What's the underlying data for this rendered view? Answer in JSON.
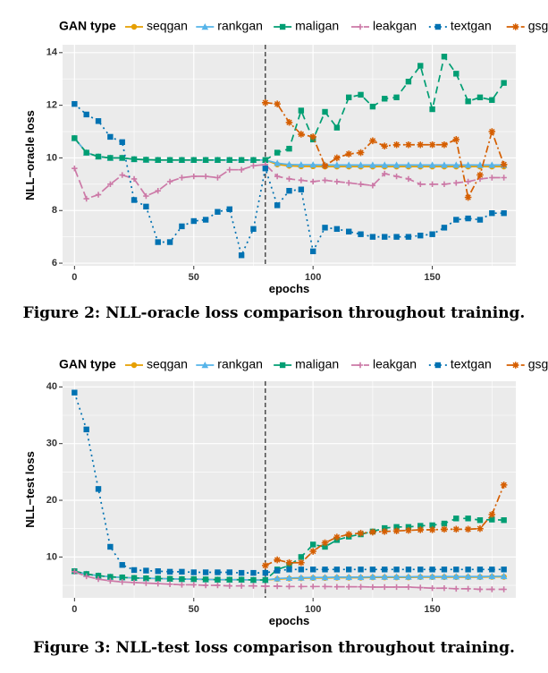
{
  "chart_data": [
    {
      "type": "line",
      "legend_title": "GAN type",
      "legend_position": "top",
      "xlabel": "epochs",
      "ylabel": "NLL−oracle loss",
      "xlim": [
        -5,
        185
      ],
      "ylim": [
        5.9,
        14.3
      ],
      "x_ticks": [
        "0",
        "50",
        "100",
        "150"
      ],
      "y_ticks": [
        "6",
        "8",
        "10",
        "12",
        "14"
      ],
      "grid": true,
      "vline_x": 80,
      "caption": "Figure 2: NLL-oracle loss comparison throughout training.",
      "series": [
        {
          "name": "seqgan",
          "color": "#e69f00",
          "dash": "",
          "marker": "circle",
          "x": [
            0,
            5,
            10,
            15,
            20,
            25,
            30,
            35,
            40,
            45,
            50,
            55,
            60,
            65,
            70,
            75,
            80,
            85,
            90,
            95,
            100,
            105,
            110,
            115,
            120,
            125,
            130,
            135,
            140,
            145,
            150,
            155,
            160,
            165,
            170,
            175,
            180
          ],
          "y": [
            10.75,
            10.2,
            10.05,
            10.0,
            10.0,
            9.95,
            9.93,
            9.92,
            9.92,
            9.92,
            9.92,
            9.92,
            9.92,
            9.92,
            9.92,
            9.92,
            9.92,
            9.75,
            9.7,
            9.68,
            9.68,
            9.67,
            9.67,
            9.67,
            9.67,
            9.67,
            9.67,
            9.67,
            9.67,
            9.67,
            9.67,
            9.67,
            9.67,
            9.67,
            9.67,
            9.67,
            9.67
          ]
        },
        {
          "name": "rankgan",
          "color": "#56b4e9",
          "dash": "",
          "marker": "triangle",
          "x": [
            0,
            5,
            10,
            15,
            20,
            25,
            30,
            35,
            40,
            45,
            50,
            55,
            60,
            65,
            70,
            75,
            80,
            85,
            90,
            95,
            100,
            105,
            110,
            115,
            120,
            125,
            130,
            135,
            140,
            145,
            150,
            155,
            160,
            165,
            170,
            175,
            180
          ],
          "y": [
            10.75,
            10.2,
            10.05,
            10.0,
            10.0,
            9.95,
            9.93,
            9.92,
            9.92,
            9.92,
            9.92,
            9.92,
            9.92,
            9.92,
            9.92,
            9.92,
            9.92,
            9.8,
            9.75,
            9.74,
            9.74,
            9.73,
            9.73,
            9.73,
            9.73,
            9.73,
            9.73,
            9.73,
            9.73,
            9.73,
            9.73,
            9.73,
            9.73,
            9.73,
            9.73,
            9.73,
            9.73
          ]
        },
        {
          "name": "maligan",
          "color": "#009e73",
          "dash": "8,5",
          "marker": "square",
          "x": [
            0,
            5,
            10,
            15,
            20,
            25,
            30,
            35,
            40,
            45,
            50,
            55,
            60,
            65,
            70,
            75,
            80,
            85,
            90,
            95,
            100,
            105,
            110,
            115,
            120,
            125,
            130,
            135,
            140,
            145,
            150,
            155,
            160,
            165,
            170,
            175,
            180
          ],
          "y": [
            10.75,
            10.2,
            10.05,
            10.0,
            10.0,
            9.95,
            9.93,
            9.92,
            9.92,
            9.92,
            9.92,
            9.92,
            9.92,
            9.92,
            9.92,
            9.92,
            9.92,
            10.2,
            10.35,
            11.8,
            10.7,
            11.75,
            11.15,
            12.3,
            12.4,
            11.95,
            12.25,
            12.3,
            12.9,
            13.5,
            11.85,
            13.85,
            13.2,
            12.15,
            12.3,
            12.2,
            12.85
          ]
        },
        {
          "name": "leakgan",
          "color": "#cc79a7",
          "dash": "10,4",
          "marker": "cross",
          "x": [
            0,
            5,
            10,
            15,
            20,
            25,
            30,
            35,
            40,
            45,
            50,
            55,
            60,
            65,
            70,
            75,
            80,
            85,
            90,
            95,
            100,
            105,
            110,
            115,
            120,
            125,
            130,
            135,
            140,
            145,
            150,
            155,
            160,
            165,
            170,
            175,
            180
          ],
          "y": [
            9.6,
            8.45,
            8.6,
            9.0,
            9.35,
            9.2,
            8.55,
            8.75,
            9.1,
            9.25,
            9.3,
            9.3,
            9.25,
            9.55,
            9.55,
            9.7,
            9.75,
            9.3,
            9.2,
            9.15,
            9.1,
            9.15,
            9.1,
            9.05,
            9.0,
            8.95,
            9.4,
            9.3,
            9.2,
            9.0,
            9.0,
            9.0,
            9.05,
            9.1,
            9.2,
            9.25,
            9.25
          ]
        },
        {
          "name": "textgan",
          "color": "#0072b2",
          "dash": "2,4",
          "marker": "square",
          "x": [
            0,
            5,
            10,
            15,
            20,
            25,
            30,
            35,
            40,
            45,
            50,
            55,
            60,
            65,
            70,
            75,
            80,
            85,
            90,
            95,
            100,
            105,
            110,
            115,
            120,
            125,
            130,
            135,
            140,
            145,
            150,
            155,
            160,
            165,
            170,
            175,
            180
          ],
          "y": [
            12.05,
            11.65,
            11.4,
            10.8,
            10.6,
            8.4,
            8.15,
            6.8,
            6.8,
            7.4,
            7.6,
            7.65,
            7.95,
            8.05,
            6.3,
            7.3,
            9.6,
            8.2,
            8.75,
            8.8,
            6.45,
            7.35,
            7.3,
            7.2,
            7.1,
            7.0,
            7.0,
            7.0,
            7.0,
            7.05,
            7.1,
            7.35,
            7.65,
            7.7,
            7.65,
            7.9,
            7.9
          ]
        },
        {
          "name": "gsgan",
          "color": "#d55e00",
          "dash": "8,3,2,3",
          "marker": "star",
          "x": [
            80,
            85,
            90,
            95,
            100,
            105,
            110,
            115,
            120,
            125,
            130,
            135,
            140,
            145,
            150,
            155,
            160,
            165,
            170,
            175,
            180
          ],
          "y": [
            12.1,
            12.05,
            11.35,
            10.9,
            10.8,
            9.7,
            10.0,
            10.15,
            10.2,
            10.65,
            10.45,
            10.5,
            10.5,
            10.5,
            10.5,
            10.5,
            10.7,
            8.5,
            9.35,
            11.0,
            9.75
          ]
        }
      ]
    },
    {
      "type": "line",
      "legend_title": "GAN type",
      "legend_position": "top",
      "xlabel": "epochs",
      "ylabel": "NLL−test loss",
      "xlim": [
        -5,
        185
      ],
      "ylim": [
        2.8,
        41
      ],
      "x_ticks": [
        "0",
        "50",
        "100",
        "150"
      ],
      "y_ticks": [
        "10",
        "20",
        "30",
        "40"
      ],
      "grid": true,
      "vline_x": 80,
      "caption": "Figure 3: NLL-test loss comparison throughout training.",
      "series": [
        {
          "name": "seqgan",
          "color": "#e69f00",
          "dash": "",
          "marker": "circle",
          "x": [
            0,
            5,
            10,
            15,
            20,
            25,
            30,
            35,
            40,
            45,
            50,
            55,
            60,
            65,
            70,
            75,
            80,
            85,
            90,
            95,
            100,
            105,
            110,
            115,
            120,
            125,
            130,
            135,
            140,
            145,
            150,
            155,
            160,
            165,
            170,
            175,
            180
          ],
          "y": [
            7.5,
            7.0,
            6.7,
            6.5,
            6.4,
            6.3,
            6.25,
            6.2,
            6.15,
            6.1,
            6.1,
            6.05,
            6.0,
            6.0,
            6.0,
            5.95,
            5.95,
            6.1,
            6.2,
            6.25,
            6.3,
            6.3,
            6.35,
            6.35,
            6.35,
            6.4,
            6.4,
            6.4,
            6.4,
            6.45,
            6.45,
            6.45,
            6.45,
            6.45,
            6.45,
            6.5,
            6.5
          ]
        },
        {
          "name": "rankgan",
          "color": "#56b4e9",
          "dash": "",
          "marker": "triangle",
          "x": [
            0,
            5,
            10,
            15,
            20,
            25,
            30,
            35,
            40,
            45,
            50,
            55,
            60,
            65,
            70,
            75,
            80,
            85,
            90,
            95,
            100,
            105,
            110,
            115,
            120,
            125,
            130,
            135,
            140,
            145,
            150,
            155,
            160,
            165,
            170,
            175,
            180
          ],
          "y": [
            7.5,
            7.0,
            6.7,
            6.5,
            6.4,
            6.3,
            6.25,
            6.2,
            6.15,
            6.1,
            6.1,
            6.05,
            6.0,
            6.0,
            6.0,
            5.95,
            5.95,
            6.2,
            6.3,
            6.35,
            6.4,
            6.4,
            6.45,
            6.45,
            6.45,
            6.5,
            6.5,
            6.5,
            6.5,
            6.55,
            6.55,
            6.55,
            6.55,
            6.55,
            6.55,
            6.6,
            6.6
          ]
        },
        {
          "name": "maligan",
          "color": "#009e73",
          "dash": "8,5",
          "marker": "square",
          "x": [
            0,
            5,
            10,
            15,
            20,
            25,
            30,
            35,
            40,
            45,
            50,
            55,
            60,
            65,
            70,
            75,
            80,
            85,
            90,
            95,
            100,
            105,
            110,
            115,
            120,
            125,
            130,
            135,
            140,
            145,
            150,
            155,
            160,
            165,
            170,
            175,
            180
          ],
          "y": [
            7.5,
            7.0,
            6.7,
            6.5,
            6.4,
            6.3,
            6.25,
            6.2,
            6.15,
            6.1,
            6.1,
            6.05,
            6.0,
            6.0,
            6.0,
            5.95,
            5.95,
            7.8,
            8.5,
            10.0,
            12.2,
            11.8,
            13.0,
            13.6,
            14.0,
            14.5,
            15.1,
            15.3,
            15.3,
            15.5,
            15.6,
            15.9,
            16.8,
            16.8,
            16.5,
            16.6,
            16.5
          ]
        },
        {
          "name": "leakgan",
          "color": "#cc79a7",
          "dash": "10,4",
          "marker": "cross",
          "x": [
            0,
            5,
            10,
            15,
            20,
            25,
            30,
            35,
            40,
            45,
            50,
            55,
            60,
            65,
            70,
            75,
            80,
            85,
            90,
            95,
            100,
            105,
            110,
            115,
            120,
            125,
            130,
            135,
            140,
            145,
            150,
            155,
            160,
            165,
            170,
            175,
            180
          ],
          "y": [
            7.4,
            6.6,
            6.1,
            5.8,
            5.6,
            5.5,
            5.4,
            5.3,
            5.2,
            5.1,
            5.1,
            5.0,
            5.0,
            4.9,
            4.9,
            4.9,
            4.85,
            4.85,
            4.8,
            4.8,
            4.8,
            4.8,
            4.75,
            4.75,
            4.75,
            4.7,
            4.7,
            4.7,
            4.7,
            4.6,
            4.5,
            4.5,
            4.4,
            4.4,
            4.3,
            4.3,
            4.3
          ]
        },
        {
          "name": "textgan",
          "color": "#0072b2",
          "dash": "2,4",
          "marker": "square",
          "x": [
            0,
            5,
            10,
            15,
            20,
            25,
            30,
            35,
            40,
            45,
            50,
            55,
            60,
            65,
            70,
            75,
            80,
            85,
            90,
            95,
            100,
            105,
            110,
            115,
            120,
            125,
            130,
            135,
            140,
            145,
            150,
            155,
            160,
            165,
            170,
            175,
            180
          ],
          "y": [
            39.0,
            32.5,
            22.0,
            11.8,
            8.6,
            7.7,
            7.6,
            7.5,
            7.4,
            7.4,
            7.3,
            7.3,
            7.3,
            7.3,
            7.2,
            7.2,
            7.2,
            7.6,
            7.8,
            7.8,
            7.8,
            7.8,
            7.8,
            7.8,
            7.8,
            7.8,
            7.8,
            7.8,
            7.8,
            7.8,
            7.8,
            7.8,
            7.8,
            7.8,
            7.8,
            7.8,
            7.8
          ]
        },
        {
          "name": "gsgan",
          "color": "#d55e00",
          "dash": "8,3,2,3",
          "marker": "star",
          "x": [
            80,
            85,
            90,
            95,
            100,
            105,
            110,
            115,
            120,
            125,
            130,
            135,
            140,
            145,
            150,
            155,
            160,
            165,
            170,
            175,
            180
          ],
          "y": [
            8.5,
            9.5,
            9.0,
            9.0,
            11.0,
            12.5,
            13.5,
            14.0,
            14.2,
            14.4,
            14.5,
            14.6,
            14.7,
            14.8,
            14.8,
            14.9,
            14.9,
            14.9,
            15.0,
            17.5,
            22.7
          ]
        }
      ]
    }
  ]
}
